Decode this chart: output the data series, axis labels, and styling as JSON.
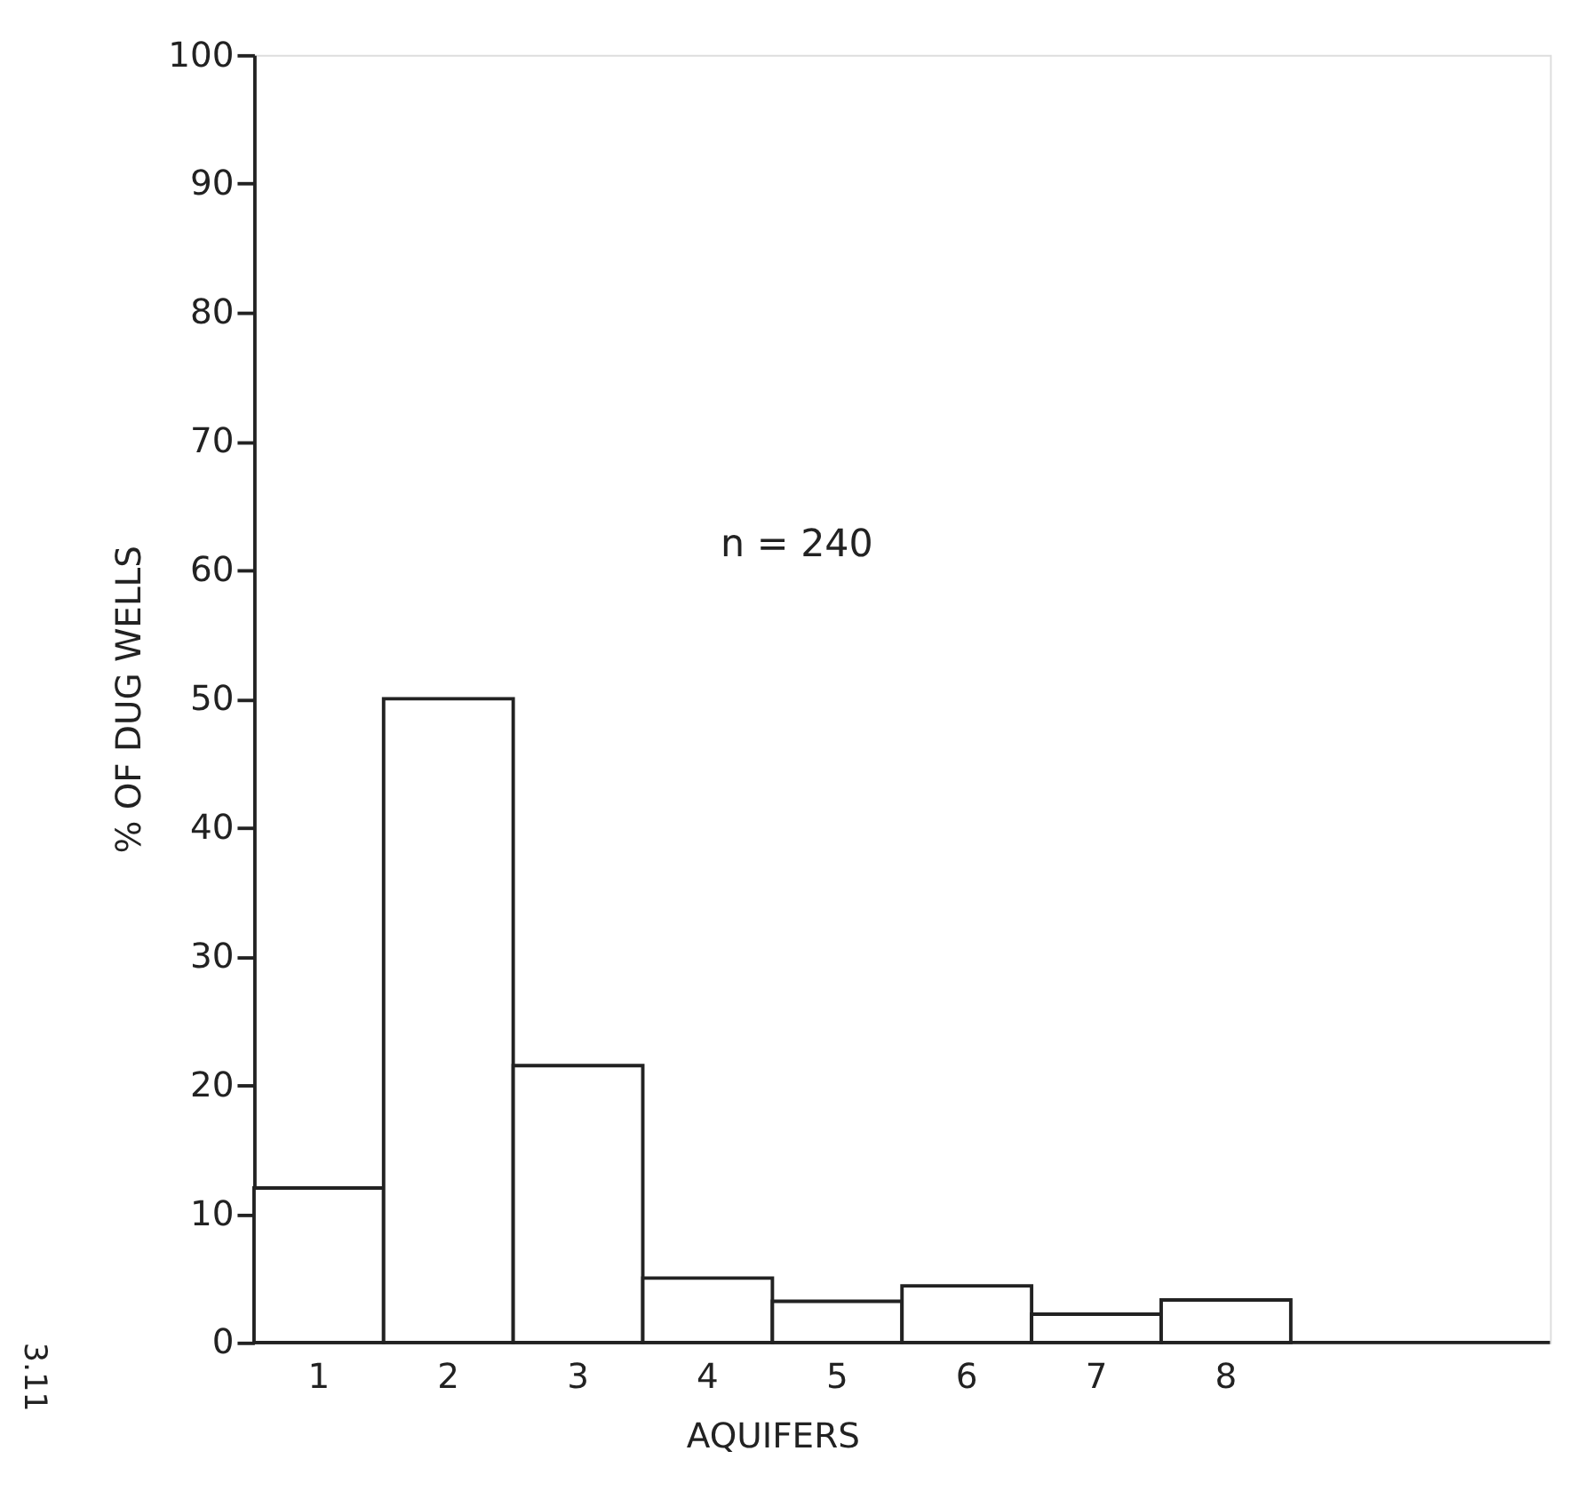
{
  "chart_data": {
    "type": "bar",
    "xlabel": "AQUIFERS",
    "ylabel": "% OF DUG WELLS",
    "categories": [
      "1",
      "2",
      "3",
      "4",
      "5",
      "6",
      "7",
      "8"
    ],
    "values": [
      12,
      50,
      21.5,
      5,
      3.2,
      4.4,
      2.2,
      3.3
    ],
    "color": "#ffffff",
    "ylim": [
      0,
      100
    ],
    "yticks": [
      0,
      10,
      20,
      30,
      40,
      50,
      60,
      70,
      80,
      90,
      100
    ],
    "annotations": [
      "n = 240",
      "3.11"
    ]
  }
}
